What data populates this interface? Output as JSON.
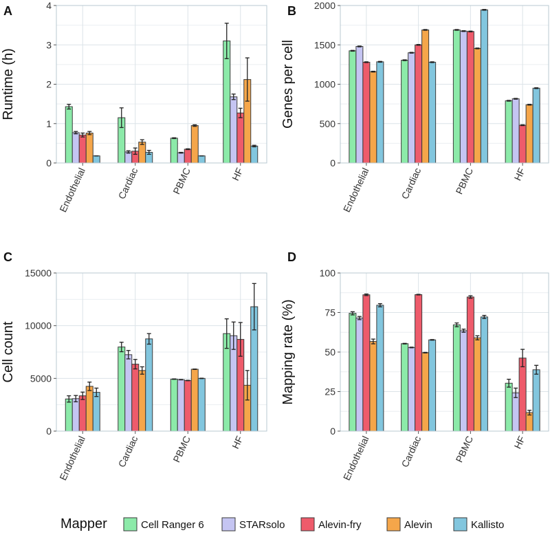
{
  "legend": {
    "title": "Mapper",
    "entries": [
      {
        "name": "Cell Ranger 6",
        "color": "#8ceaa9"
      },
      {
        "name": "STARsolo",
        "color": "#c5c5f2"
      },
      {
        "name": "Alevin-fry",
        "color": "#ee5b6b"
      },
      {
        "name": "Alevin",
        "color": "#f5a64a"
      },
      {
        "name": "Kallisto",
        "color": "#82c6de"
      }
    ]
  },
  "chart_data": [
    {
      "type": "bar",
      "panel": "A",
      "ylabel": "Runtime (h)",
      "xlabel": "",
      "ylim": [
        0,
        4
      ],
      "yticks": [
        "0",
        "1",
        "2",
        "3",
        "4"
      ],
      "categories": [
        "Endothelial",
        "Cardiac",
        "PBMC",
        "HF"
      ],
      "series": [
        {
          "name": "Cell Ranger 6",
          "values": [
            1.43,
            1.15,
            0.63,
            3.1
          ],
          "errors": [
            0.06,
            0.25,
            0.01,
            0.45
          ]
        },
        {
          "name": "STARsolo",
          "values": [
            0.77,
            0.28,
            0.26,
            1.68
          ],
          "errors": [
            0.03,
            0.03,
            0.01,
            0.07
          ]
        },
        {
          "name": "Alevin-fry",
          "values": [
            0.71,
            0.3,
            0.35,
            1.27
          ],
          "errors": [
            0.05,
            0.08,
            0.01,
            0.12
          ]
        },
        {
          "name": "Alevin",
          "values": [
            0.76,
            0.53,
            0.95,
            2.12
          ],
          "errors": [
            0.04,
            0.06,
            0.02,
            0.55
          ]
        },
        {
          "name": "Kallisto",
          "values": [
            0.18,
            0.27,
            0.18,
            0.43
          ],
          "errors": [
            0.0,
            0.05,
            0.0,
            0.02
          ]
        }
      ]
    },
    {
      "type": "bar",
      "panel": "B",
      "ylabel": "Genes per cell",
      "xlabel": "",
      "ylim": [
        0,
        2000
      ],
      "yticks": [
        "0",
        "500",
        "1000",
        "1500",
        "2000"
      ],
      "categories": [
        "Endothelial",
        "Cardiac",
        "PBMC",
        "HF"
      ],
      "series": [
        {
          "name": "Cell Ranger 6",
          "values": [
            1425,
            1305,
            1690,
            790
          ],
          "errors": [
            5,
            5,
            5,
            5
          ]
        },
        {
          "name": "STARsolo",
          "values": [
            1480,
            1400,
            1675,
            815
          ],
          "errors": [
            5,
            5,
            5,
            5
          ]
        },
        {
          "name": "Alevin-fry",
          "values": [
            1280,
            1500,
            1670,
            480
          ],
          "errors": [
            5,
            5,
            5,
            5
          ]
        },
        {
          "name": "Alevin",
          "values": [
            1160,
            1690,
            1455,
            740
          ],
          "errors": [
            5,
            5,
            5,
            5
          ]
        },
        {
          "name": "Kallisto",
          "values": [
            1285,
            1280,
            1945,
            950
          ],
          "errors": [
            5,
            5,
            5,
            5
          ]
        }
      ]
    },
    {
      "type": "bar",
      "panel": "C",
      "ylabel": "Cell count",
      "xlabel": "",
      "ylim": [
        0,
        15000
      ],
      "yticks": [
        "0",
        "5000",
        "10000",
        "15000"
      ],
      "categories": [
        "Endothelial",
        "Cardiac",
        "PBMC",
        "HF"
      ],
      "series": [
        {
          "name": "Cell Ranger 6",
          "values": [
            3050,
            7980,
            4930,
            9250
          ],
          "errors": [
            300,
            450,
            20,
            1400
          ]
        },
        {
          "name": "STARsolo",
          "values": [
            3080,
            7250,
            4880,
            9050
          ],
          "errors": [
            300,
            400,
            20,
            1300
          ]
        },
        {
          "name": "Alevin-fry",
          "values": [
            3350,
            6350,
            4800,
            8700
          ],
          "errors": [
            350,
            450,
            20,
            1600
          ]
        },
        {
          "name": "Alevin",
          "values": [
            4250,
            5750,
            5870,
            4350
          ],
          "errors": [
            400,
            350,
            20,
            1400
          ]
        },
        {
          "name": "Kallisto",
          "values": [
            3680,
            8750,
            5000,
            11800
          ],
          "errors": [
            400,
            500,
            20,
            2200
          ]
        }
      ]
    },
    {
      "type": "bar",
      "panel": "D",
      "ylabel": "Mapping rate (%)",
      "xlabel": "",
      "ylim": [
        0,
        100
      ],
      "yticks": [
        "0",
        "25",
        "50",
        "75",
        "100"
      ],
      "categories": [
        "Endothelial",
        "Cardiac",
        "PBMC",
        "HF"
      ],
      "series": [
        {
          "name": "Cell Ranger 6",
          "values": [
            74.5,
            55.3,
            67.2,
            30.3
          ],
          "errors": [
            1.0,
            0.2,
            1.2,
            2.5
          ]
        },
        {
          "name": "STARsolo",
          "values": [
            71.5,
            52.9,
            63.5,
            24.2
          ],
          "errors": [
            1.0,
            0.2,
            1.0,
            3.0
          ]
        },
        {
          "name": "Alevin-fry",
          "values": [
            86.2,
            86.3,
            84.8,
            46.2
          ],
          "errors": [
            0.5,
            0.2,
            0.8,
            5.5
          ]
        },
        {
          "name": "Alevin",
          "values": [
            56.7,
            49.6,
            59.0,
            11.7
          ],
          "errors": [
            1.5,
            0.2,
            1.3,
            1.5
          ]
        },
        {
          "name": "Kallisto",
          "values": [
            79.6,
            57.7,
            72.2,
            38.8
          ],
          "errors": [
            1.0,
            0.2,
            1.0,
            2.8
          ]
        }
      ]
    }
  ]
}
